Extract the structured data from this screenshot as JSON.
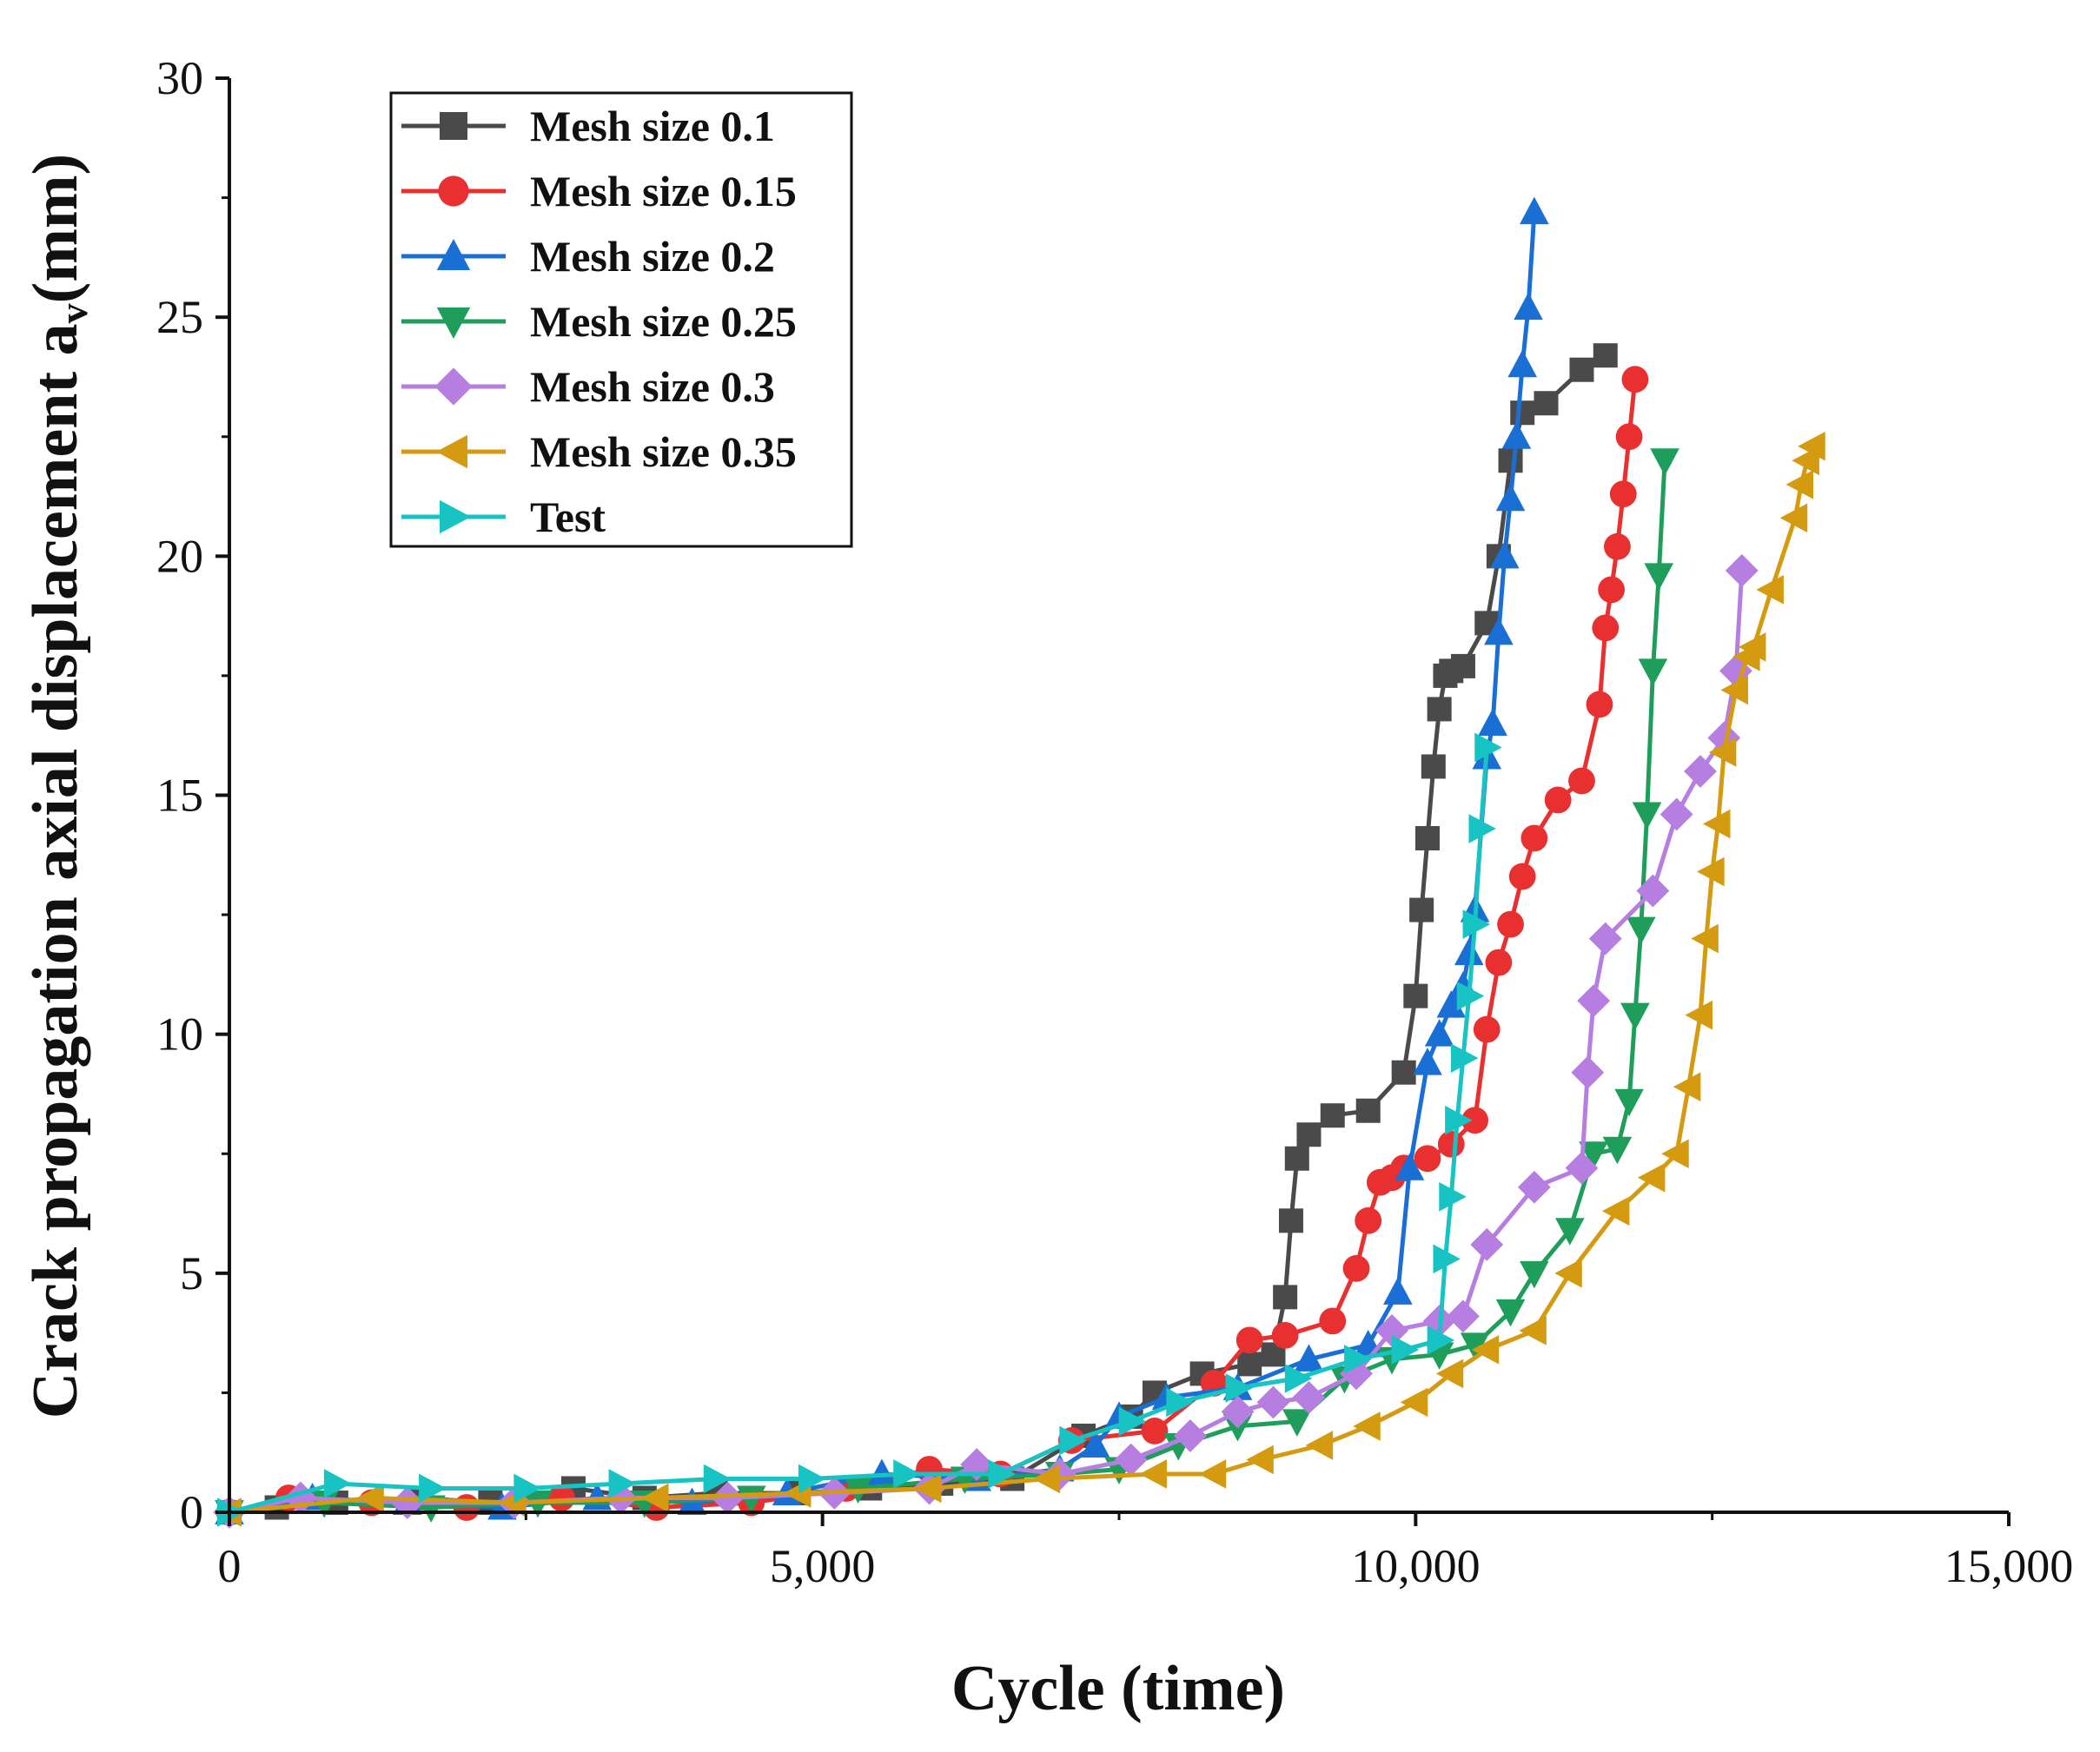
{
  "chart_data": {
    "type": "line",
    "xlabel": "Cycle (time)",
    "ylabel": "Crack propagation axial displacement a",
    "ylabel_sub": "v",
    "ylabel_unit": "(mm)",
    "xlim": [
      0,
      15000
    ],
    "ylim": [
      0,
      30
    ],
    "xticks": [
      0,
      5000,
      10000,
      15000
    ],
    "xtick_labels": [
      "0",
      "5,000",
      "10,000",
      "15,000"
    ],
    "yticks": [
      0,
      5,
      10,
      15,
      20,
      25,
      30
    ],
    "ytick_labels": [
      "0",
      "5",
      "10",
      "15",
      "20",
      "25",
      "30"
    ],
    "legend_position": "top-left",
    "series": [
      {
        "name": "Mesh size 0.1",
        "color": "#4a4a4a",
        "marker": "square",
        "x": [
          0,
          400,
          900,
          1600,
          2200,
          2900,
          3500,
          4100,
          4800,
          5400,
          6000,
          6600,
          7200,
          7600,
          7800,
          8200,
          8600,
          8800,
          8900,
          8950,
          9000,
          9100,
          9300,
          9600,
          9900,
          10000,
          10050,
          10100,
          10150,
          10200,
          10250,
          10300,
          10400,
          10600,
          10700,
          10800,
          10900,
          11100,
          11400,
          11600
        ],
        "y": [
          0.0,
          0.1,
          0.2,
          0.3,
          0.2,
          0.5,
          0.3,
          0.4,
          0.4,
          0.5,
          0.6,
          0.7,
          1.6,
          2.0,
          2.5,
          2.9,
          3.1,
          3.3,
          4.5,
          6.1,
          7.4,
          7.9,
          8.3,
          8.4,
          9.2,
          10.8,
          12.6,
          14.1,
          15.6,
          16.8,
          17.5,
          17.6,
          17.7,
          18.6,
          20.0,
          22.0,
          23.0,
          23.2,
          23.9,
          24.2
        ]
      },
      {
        "name": "Mesh size 0.15",
        "color": "#e83030",
        "marker": "circle",
        "x": [
          0,
          500,
          1200,
          2000,
          2800,
          3600,
          4400,
          5200,
          5900,
          6500,
          7100,
          7800,
          8300,
          8600,
          8900,
          9300,
          9500,
          9600,
          9700,
          9800,
          9900,
          10100,
          10300,
          10500,
          10600,
          10700,
          10800,
          10900,
          11000,
          11200,
          11400,
          11550,
          11600,
          11650,
          11700,
          11750,
          11800,
          11850
        ],
        "y": [
          0.0,
          0.3,
          0.2,
          0.1,
          0.3,
          0.1,
          0.2,
          0.5,
          0.9,
          0.8,
          1.5,
          1.7,
          2.7,
          3.6,
          3.7,
          4.0,
          5.1,
          6.1,
          6.9,
          7.0,
          7.2,
          7.4,
          7.7,
          8.2,
          10.1,
          11.5,
          12.3,
          13.3,
          14.1,
          14.9,
          15.3,
          16.9,
          18.5,
          19.3,
          20.2,
          21.3,
          22.5,
          23.7
        ]
      },
      {
        "name": "Mesh size 0.2",
        "color": "#1a6fd4",
        "marker": "triangle-up",
        "x": [
          0,
          700,
          1500,
          2300,
          3100,
          3900,
          4700,
          5500,
          6300,
          7000,
          7300,
          7500,
          7900,
          8500,
          9100,
          9600,
          9850,
          9950,
          10100,
          10200,
          10300,
          10400,
          10450,
          10500,
          10600,
          10650,
          10700,
          10750,
          10800,
          10850,
          10900,
          10950,
          11000
        ],
        "y": [
          0.0,
          0.3,
          0.2,
          0.1,
          0.3,
          0.2,
          0.4,
          0.8,
          0.7,
          0.9,
          1.4,
          2.0,
          2.4,
          2.6,
          3.2,
          3.5,
          4.6,
          7.2,
          9.4,
          10.0,
          10.6,
          11.0,
          11.7,
          12.6,
          15.8,
          16.5,
          18.4,
          20.0,
          21.2,
          22.5,
          24.0,
          25.2,
          27.2
        ]
      },
      {
        "name": "Mesh size 0.25",
        "color": "#1e9e5a",
        "marker": "triangle-down",
        "x": [
          0,
          800,
          1700,
          2600,
          3500,
          4400,
          5300,
          6200,
          7000,
          7500,
          8000,
          8500,
          9000,
          9400,
          9800,
          10200,
          10500,
          10800,
          11000,
          11300,
          11500,
          11700,
          11800,
          11850,
          11900,
          11950,
          12000,
          12050,
          12100
        ],
        "y": [
          0.0,
          0.2,
          0.1,
          0.2,
          0.2,
          0.3,
          0.5,
          0.7,
          0.8,
          0.9,
          1.4,
          1.8,
          1.9,
          2.8,
          3.2,
          3.3,
          3.5,
          4.2,
          5.0,
          5.9,
          7.5,
          7.6,
          8.6,
          10.4,
          12.2,
          14.6,
          17.6,
          19.6,
          22.0
        ]
      },
      {
        "name": "Mesh size 0.3",
        "color": "#b57ee0",
        "marker": "diamond",
        "x": [
          0,
          600,
          1500,
          2400,
          3300,
          4200,
          5100,
          5900,
          6300,
          7000,
          7600,
          8100,
          8500,
          8800,
          9100,
          9500,
          9800,
          10200,
          10400,
          10600,
          11000,
          11400,
          11450,
          11500,
          11600,
          12000,
          12200,
          12400,
          12600,
          12700,
          12750
        ],
        "y": [
          0.0,
          0.3,
          0.2,
          0.2,
          0.3,
          0.3,
          0.4,
          0.5,
          1.0,
          0.8,
          1.1,
          1.6,
          2.1,
          2.3,
          2.4,
          2.9,
          3.8,
          4.0,
          4.1,
          5.6,
          6.8,
          7.2,
          9.2,
          10.7,
          12.0,
          13.0,
          14.6,
          15.5,
          16.2,
          17.6,
          19.7
        ]
      },
      {
        "name": "Mesh size 0.35",
        "color": "#d49a10",
        "marker": "triangle-left",
        "x": [
          0,
          1200,
          2400,
          3600,
          4800,
          5900,
          6900,
          7800,
          8300,
          8700,
          9200,
          9600,
          10000,
          10300,
          10600,
          11000,
          11300,
          11700,
          12000,
          12200,
          12300,
          12400,
          12450,
          12500,
          12550,
          12600,
          12700,
          12800,
          12850,
          13000,
          13200,
          13250,
          13300,
          13350
        ],
        "y": [
          0.0,
          0.3,
          0.2,
          0.3,
          0.4,
          0.5,
          0.7,
          0.8,
          0.8,
          1.1,
          1.4,
          1.8,
          2.3,
          2.9,
          3.4,
          3.8,
          5.0,
          6.3,
          7.0,
          7.5,
          8.9,
          10.4,
          12.0,
          13.4,
          14.4,
          15.9,
          17.2,
          17.9,
          18.1,
          19.3,
          20.8,
          21.5,
          22.0,
          22.3
        ]
      },
      {
        "name": "Test",
        "color": "#17c3c3",
        "marker": "triangle-right",
        "x": [
          0,
          900,
          1700,
          2500,
          3300,
          4100,
          4900,
          5700,
          6500,
          7100,
          7600,
          8000,
          8500,
          9000,
          9500,
          9900,
          10200,
          10250,
          10300,
          10350,
          10400,
          10450,
          10500,
          10550,
          10600
        ],
        "y": [
          0.0,
          0.6,
          0.5,
          0.5,
          0.6,
          0.7,
          0.7,
          0.8,
          0.8,
          1.5,
          1.9,
          2.3,
          2.6,
          2.8,
          3.2,
          3.4,
          3.6,
          5.3,
          6.6,
          8.2,
          9.5,
          10.8,
          12.3,
          14.3,
          16.0
        ]
      }
    ]
  }
}
